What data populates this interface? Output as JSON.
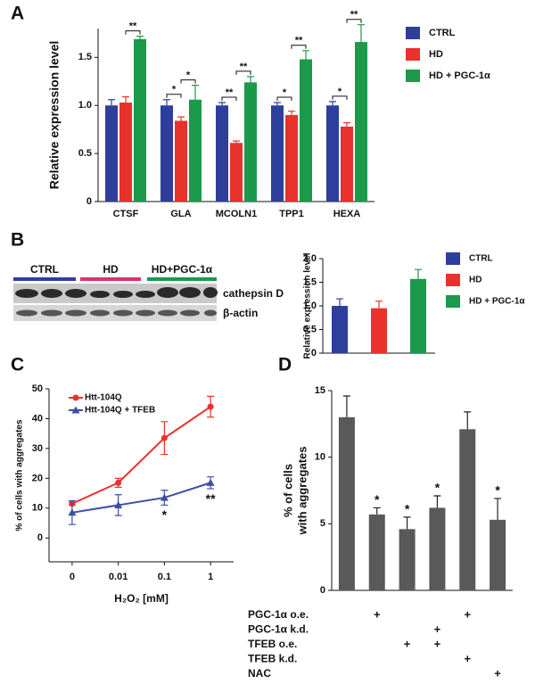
{
  "chart_data": [
    {
      "panel": "A",
      "type": "bar",
      "ylabel": "Relative expression level",
      "categories": [
        "CTSF",
        "GLA",
        "MCOLN1",
        "TPP1",
        "HEXA"
      ],
      "series": [
        {
          "name": "CTRL",
          "color": "#2e3e9c",
          "values": [
            1.0,
            1.0,
            1.0,
            1.0,
            1.0
          ],
          "errors": [
            0.06,
            0.06,
            0.03,
            0.03,
            0.04
          ]
        },
        {
          "name": "HD",
          "color": "#e8322b",
          "values": [
            1.03,
            0.84,
            0.61,
            0.9,
            0.78
          ],
          "errors": [
            0.06,
            0.04,
            0.02,
            0.04,
            0.04
          ]
        },
        {
          "name": "HD + PGC-1α",
          "color": "#1a9a4a",
          "values": [
            1.69,
            1.06,
            1.24,
            1.48,
            1.66
          ],
          "errors": [
            0.03,
            0.15,
            0.06,
            0.09,
            0.18
          ]
        }
      ],
      "ylim": [
        0,
        1.8
      ],
      "yticks": [
        0,
        0.5,
        {
          "value": 1,
          "label": "1.0"
        },
        1.5
      ],
      "annotations": [
        "**",
        "*",
        "*",
        "**",
        "**",
        "*",
        "**",
        "*",
        "**"
      ],
      "legend": "right"
    },
    {
      "panel": "B",
      "type": "bar",
      "ylabel": "Relative expression level",
      "categories": [
        null
      ],
      "series": [
        {
          "name": "CTRL",
          "color": "#2e3e9c",
          "values": [
            1.0
          ],
          "errors": [
            0.15
          ]
        },
        {
          "name": "HD",
          "color": "#e8322b",
          "values": [
            0.95
          ],
          "errors": [
            0.15
          ]
        },
        {
          "name": "HD + PGC-1α",
          "color": "#1a9a4a",
          "values": [
            1.57
          ],
          "errors": [
            0.2
          ]
        }
      ],
      "ylim": [
        0,
        2
      ],
      "yticks": [
        0,
        0.5,
        {
          "value": 1,
          "label": "1.0"
        },
        1.5,
        {
          "value": 2,
          "label": "2.0"
        }
      ],
      "legend": "right",
      "blot": {
        "groups": [
          "CTRL",
          "HD",
          "HD+PGC-1α"
        ],
        "group_colors": [
          "#2e3e9c",
          "#e0316e",
          "#1a9a4a"
        ],
        "bands": [
          "cathepsin D",
          "β-actin"
        ]
      }
    },
    {
      "panel": "C",
      "type": "line",
      "xlabel": "H₂O₂ [mM]",
      "ylabel": "% of cells with aggregates",
      "categories": [
        "0",
        "0.01",
        "0.1",
        "1"
      ],
      "series": [
        {
          "name": "Htt-104Q",
          "color": "#e8322b",
          "marker": "circle",
          "values": [
            11.5,
            18.5,
            33.5,
            44
          ],
          "errors": [
            0.5,
            1.5,
            5.5,
            3.5
          ]
        },
        {
          "name": "Htt-104Q + TFEB",
          "color": "#3c4fa3",
          "marker": "triangle",
          "values": [
            8.5,
            11,
            13.5,
            18.5
          ],
          "errors": [
            4,
            3.5,
            2.5,
            2
          ],
          "significance": [
            null,
            null,
            "*",
            "**"
          ]
        }
      ],
      "ylim": [
        -8,
        50
      ],
      "yticks": [
        0,
        10,
        20,
        30,
        40,
        50
      ],
      "legend": "upper left"
    },
    {
      "panel": "D",
      "type": "bar",
      "ylabel": [
        "% of cells",
        "with aggregates"
      ],
      "categories": [
        null,
        null,
        null,
        null,
        null,
        null
      ],
      "values": [
        13,
        5.7,
        4.6,
        6.2,
        12.1,
        5.3
      ],
      "errors": [
        1.6,
        0.5,
        0.9,
        0.9,
        1.3,
        1.6
      ],
      "color": "#595959",
      "significance": [
        null,
        "*",
        "*",
        "*",
        null,
        "*"
      ],
      "ylim": [
        0,
        15
      ],
      "yticks": [
        0,
        5,
        10,
        15
      ],
      "conditions": [
        {
          "label": "PGC-1α o.e.",
          "marks": [
            null,
            "+",
            null,
            null,
            "+",
            null
          ]
        },
        {
          "label": "PGC-1α k.d.",
          "marks": [
            null,
            null,
            null,
            "+",
            null,
            null
          ]
        },
        {
          "label": "TFEB o.e.",
          "marks": [
            null,
            null,
            "+",
            "+",
            null,
            null
          ]
        },
        {
          "label": "TFEB k.d.",
          "marks": [
            null,
            null,
            null,
            null,
            "+",
            null
          ]
        },
        {
          "label": "NAC",
          "marks": [
            null,
            null,
            null,
            null,
            null,
            "+"
          ]
        }
      ]
    }
  ]
}
